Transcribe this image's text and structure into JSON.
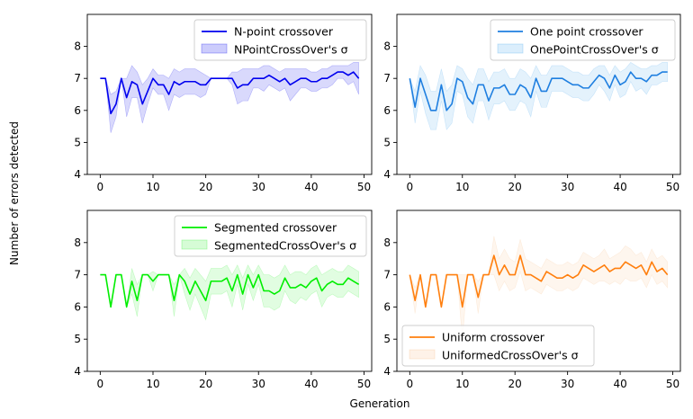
{
  "figure": {
    "xlabel": "Generation",
    "ylabel": "Number of errors detected"
  },
  "chart_data": [
    {
      "type": "line",
      "xlim": [
        0,
        49
      ],
      "ylim": [
        4,
        9
      ],
      "yticks": [
        4,
        5,
        6,
        7,
        8
      ],
      "xticks": [
        0,
        10,
        20,
        30,
        40,
        50
      ],
      "legend_position": "top-right",
      "line_color": "#0000ee",
      "band_color": "#0000ee",
      "series": [
        {
          "name": "N-point crossover",
          "values": [
            7.0,
            7.0,
            5.9,
            6.2,
            7.0,
            6.4,
            6.9,
            6.8,
            6.2,
            6.6,
            7.0,
            6.8,
            6.8,
            6.5,
            6.9,
            6.8,
            6.9,
            6.9,
            6.9,
            6.8,
            6.8,
            7.0,
            7.0,
            7.0,
            7.0,
            7.0,
            6.7,
            6.8,
            6.8,
            7.0,
            7.0,
            7.0,
            7.1,
            7.0,
            6.9,
            7.0,
            6.8,
            6.9,
            7.0,
            7.0,
            6.9,
            6.9,
            7.0,
            7.0,
            7.1,
            7.2,
            7.2,
            7.1,
            7.2,
            7.0
          ]
        },
        {
          "name": "NPointCrossOver's σ",
          "kind": "band",
          "upper": [
            7.0,
            7.0,
            6.5,
            6.6,
            7.0,
            7.0,
            7.4,
            7.2,
            6.8,
            7.0,
            7.3,
            7.1,
            7.1,
            7.0,
            7.3,
            7.2,
            7.3,
            7.3,
            7.3,
            7.2,
            7.1,
            7.0,
            7.0,
            7.0,
            7.0,
            7.2,
            7.2,
            7.3,
            7.3,
            7.3,
            7.3,
            7.4,
            7.4,
            7.3,
            7.2,
            7.3,
            7.3,
            7.3,
            7.3,
            7.3,
            7.2,
            7.2,
            7.3,
            7.3,
            7.4,
            7.4,
            7.4,
            7.4,
            7.5,
            7.5
          ],
          "lower": [
            7.0,
            7.0,
            5.3,
            5.8,
            7.0,
            5.8,
            6.4,
            6.4,
            5.6,
            6.2,
            6.7,
            6.5,
            6.5,
            6.0,
            6.5,
            6.4,
            6.5,
            6.5,
            6.5,
            6.4,
            6.5,
            7.0,
            7.0,
            7.0,
            7.0,
            6.8,
            6.2,
            6.3,
            6.3,
            6.7,
            6.7,
            6.6,
            6.8,
            6.7,
            6.6,
            6.7,
            6.3,
            6.5,
            6.7,
            6.7,
            6.6,
            6.6,
            6.7,
            6.7,
            6.8,
            7.0,
            7.0,
            6.8,
            6.9,
            6.5
          ]
        }
      ]
    },
    {
      "type": "line",
      "xlim": [
        0,
        49
      ],
      "ylim": [
        4,
        9
      ],
      "yticks": [
        4,
        5,
        6,
        7,
        8
      ],
      "xticks": [
        0,
        10,
        20,
        30,
        40,
        50
      ],
      "legend_position": "top-right",
      "line_color": "#1f7fe0",
      "band_color": "#4aa8ee",
      "series": [
        {
          "name": "One point crossover",
          "values": [
            7.0,
            6.1,
            7.0,
            6.5,
            6.0,
            6.0,
            6.8,
            6.0,
            6.2,
            7.0,
            6.9,
            6.4,
            6.2,
            6.8,
            6.8,
            6.3,
            6.7,
            6.7,
            6.8,
            6.5,
            6.5,
            6.8,
            6.7,
            6.4,
            7.0,
            6.6,
            6.6,
            7.0,
            7.0,
            7.0,
            6.9,
            6.8,
            6.8,
            6.7,
            6.7,
            6.9,
            7.1,
            7.0,
            6.7,
            7.1,
            6.8,
            6.9,
            7.2,
            7.0,
            7.0,
            6.9,
            7.1,
            7.1,
            7.2,
            7.2
          ]
        },
        {
          "name": "OnePointCrossOver's σ",
          "kind": "band",
          "upper": [
            7.0,
            6.6,
            7.4,
            7.1,
            6.6,
            6.6,
            7.3,
            6.6,
            6.8,
            7.4,
            7.3,
            7.0,
            6.8,
            7.3,
            7.3,
            6.9,
            7.2,
            7.2,
            7.3,
            7.0,
            7.0,
            7.3,
            7.2,
            7.0,
            7.4,
            7.1,
            7.1,
            7.4,
            7.4,
            7.4,
            7.3,
            7.2,
            7.2,
            7.1,
            7.1,
            7.3,
            7.4,
            7.4,
            7.1,
            7.4,
            7.2,
            7.3,
            7.5,
            7.4,
            7.3,
            7.3,
            7.4,
            7.4,
            7.5,
            7.5
          ],
          "lower": [
            7.0,
            5.6,
            6.6,
            5.9,
            5.4,
            5.4,
            6.3,
            5.4,
            5.6,
            6.6,
            6.5,
            5.8,
            5.6,
            6.3,
            6.3,
            5.7,
            6.2,
            6.2,
            6.3,
            6.0,
            6.0,
            6.3,
            6.2,
            5.8,
            6.6,
            6.1,
            6.1,
            6.6,
            6.6,
            6.6,
            6.5,
            6.4,
            6.4,
            6.3,
            6.3,
            6.5,
            6.8,
            6.6,
            6.3,
            6.8,
            6.4,
            6.5,
            6.9,
            6.6,
            6.7,
            6.5,
            6.8,
            6.8,
            6.9,
            6.9
          ]
        }
      ]
    },
    {
      "type": "line",
      "xlim": [
        0,
        49
      ],
      "ylim": [
        4,
        9
      ],
      "yticks": [
        4,
        5,
        6,
        7,
        8
      ],
      "xticks": [
        0,
        10,
        20,
        30,
        40,
        50
      ],
      "legend_position": "top-right",
      "line_color": "#00ee00",
      "band_color": "#33f033",
      "series": [
        {
          "name": "Segmented crossover",
          "values": [
            7.0,
            7.0,
            6.0,
            7.0,
            7.0,
            6.0,
            6.8,
            6.2,
            7.0,
            7.0,
            6.8,
            7.0,
            7.0,
            7.0,
            6.2,
            7.0,
            6.8,
            6.4,
            6.8,
            6.5,
            6.2,
            6.8,
            6.8,
            6.8,
            6.9,
            6.5,
            7.0,
            6.4,
            7.0,
            6.6,
            7.0,
            6.5,
            6.5,
            6.4,
            6.5,
            6.9,
            6.6,
            6.6,
            6.7,
            6.6,
            6.8,
            6.9,
            6.5,
            6.7,
            6.8,
            6.7,
            6.7,
            6.9,
            6.8,
            6.7
          ]
        },
        {
          "name": "SegmentedCrossOver's σ",
          "kind": "band",
          "upper": [
            7.0,
            7.0,
            6.0,
            7.0,
            7.0,
            6.0,
            7.2,
            6.7,
            7.0,
            7.0,
            7.1,
            7.0,
            7.0,
            7.0,
            6.7,
            7.0,
            7.2,
            6.9,
            7.2,
            7.0,
            6.8,
            7.2,
            7.2,
            7.2,
            7.3,
            7.0,
            7.3,
            6.9,
            7.3,
            7.0,
            7.3,
            7.0,
            7.0,
            6.9,
            7.0,
            7.3,
            7.0,
            7.1,
            7.1,
            7.0,
            7.2,
            7.3,
            7.0,
            7.1,
            7.2,
            7.1,
            7.1,
            7.3,
            7.2,
            7.1
          ],
          "lower": [
            7.0,
            7.0,
            6.0,
            7.0,
            7.0,
            6.0,
            6.4,
            5.7,
            7.0,
            7.0,
            6.5,
            7.0,
            7.0,
            7.0,
            5.7,
            7.0,
            6.4,
            5.9,
            6.4,
            6.0,
            5.6,
            6.4,
            6.4,
            6.4,
            6.5,
            6.0,
            6.7,
            5.9,
            6.7,
            6.2,
            6.7,
            6.0,
            6.0,
            5.9,
            6.0,
            6.5,
            6.2,
            6.1,
            6.3,
            6.2,
            6.4,
            6.5,
            6.0,
            6.3,
            6.4,
            6.3,
            6.3,
            6.5,
            6.4,
            6.3
          ]
        }
      ]
    },
    {
      "type": "line",
      "xlim": [
        0,
        49
      ],
      "ylim": [
        4,
        9
      ],
      "yticks": [
        4,
        5,
        6,
        7,
        8
      ],
      "xticks": [
        0,
        10,
        20,
        30,
        40,
        50
      ],
      "legend_position": "bottom-left",
      "line_color": "#ff7f0e",
      "band_color": "#f9c08a",
      "series": [
        {
          "name": "Uniform crossover",
          "values": [
            7.0,
            6.2,
            7.0,
            6.0,
            7.0,
            7.0,
            6.0,
            7.0,
            7.0,
            7.0,
            6.0,
            7.0,
            7.0,
            6.3,
            7.0,
            7.0,
            7.6,
            7.0,
            7.3,
            7.0,
            7.0,
            7.6,
            7.0,
            7.0,
            6.9,
            6.8,
            7.1,
            7.0,
            6.9,
            6.9,
            7.0,
            6.9,
            7.0,
            7.3,
            7.2,
            7.1,
            7.2,
            7.3,
            7.1,
            7.2,
            7.2,
            7.4,
            7.3,
            7.2,
            7.3,
            7.0,
            7.4,
            7.1,
            7.2,
            7.0
          ]
        },
        {
          "name": "UniformedCrossOver's σ",
          "kind": "band",
          "upper": [
            7.0,
            6.6,
            7.0,
            6.0,
            7.0,
            7.0,
            6.0,
            7.0,
            7.0,
            7.0,
            7.0,
            7.0,
            7.0,
            6.8,
            7.0,
            7.0,
            8.2,
            7.5,
            7.8,
            7.5,
            7.4,
            8.1,
            7.5,
            7.4,
            7.3,
            7.2,
            7.5,
            7.4,
            7.3,
            7.3,
            7.4,
            7.3,
            7.4,
            7.7,
            7.6,
            7.5,
            7.6,
            7.8,
            7.5,
            7.6,
            7.7,
            7.9,
            7.8,
            7.6,
            7.7,
            7.4,
            7.8,
            7.5,
            7.6,
            7.4
          ],
          "lower": [
            7.0,
            5.8,
            7.0,
            6.0,
            7.0,
            7.0,
            6.0,
            7.0,
            7.0,
            7.0,
            5.0,
            7.0,
            7.0,
            5.8,
            7.0,
            7.0,
            7.0,
            6.5,
            6.8,
            6.5,
            6.6,
            7.1,
            6.5,
            6.6,
            6.5,
            6.4,
            6.7,
            6.6,
            6.5,
            6.5,
            6.6,
            6.5,
            6.6,
            6.9,
            6.8,
            6.7,
            6.8,
            6.8,
            6.7,
            6.8,
            6.7,
            6.9,
            6.8,
            6.8,
            6.9,
            6.6,
            7.0,
            6.7,
            6.8,
            6.6
          ]
        }
      ]
    }
  ]
}
